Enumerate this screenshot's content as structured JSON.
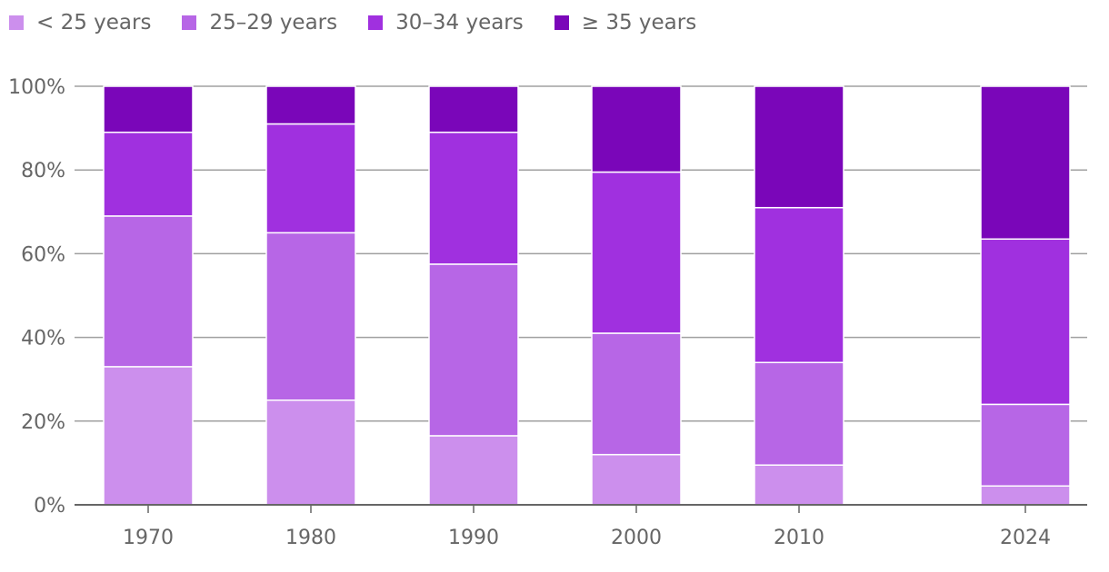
{
  "chart_data": {
    "type": "bar",
    "stacked": true,
    "normalized": true,
    "categories": [
      "1970",
      "1980",
      "1990",
      "2000",
      "2010",
      "2024"
    ],
    "series": [
      {
        "name": "< 25 years",
        "color": "#cc8fed",
        "values": [
          33,
          25,
          16.5,
          12,
          9.5,
          4.5
        ]
      },
      {
        "name": "25–29 years",
        "color": "#b766e6",
        "values": [
          36,
          40,
          41,
          29,
          24.5,
          19.5
        ]
      },
      {
        "name": "30–34 years",
        "color": "#a030df",
        "values": [
          20,
          26,
          31.5,
          38.5,
          37,
          39.5
        ]
      },
      {
        "name": "≥ 35 years",
        "color": "#7a06b9",
        "values": [
          11,
          9,
          11,
          20.5,
          29,
          36.5
        ]
      }
    ],
    "ylim": [
      0,
      100
    ],
    "yticks": [
      "0%",
      "20%",
      "40%",
      "60%",
      "80%",
      "100%"
    ],
    "title": "",
    "xlabel": "",
    "ylabel": "",
    "grid": true,
    "legend_position": "top-left"
  }
}
